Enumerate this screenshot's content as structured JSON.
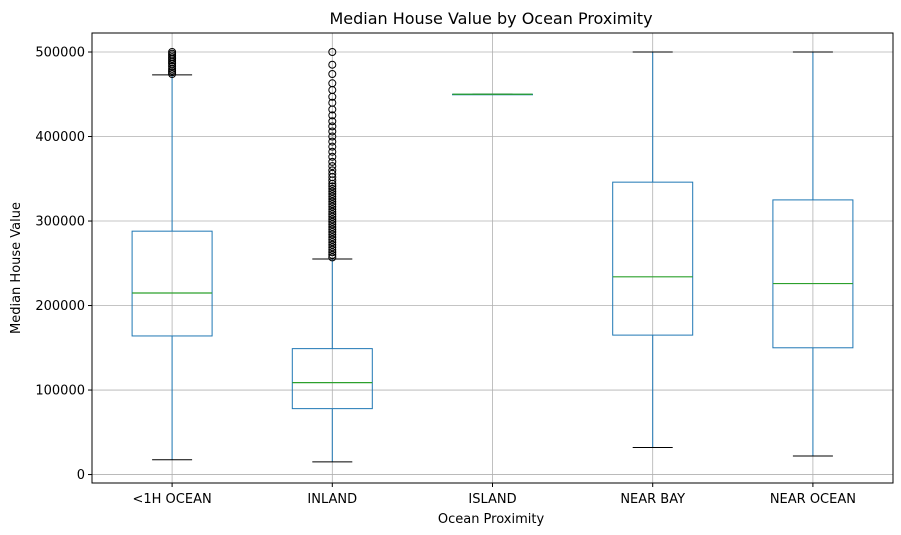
{
  "chart_data": {
    "type": "box",
    "title": "Median House Value by Ocean Proximity",
    "xlabel": "Ocean Proximity",
    "ylabel": "Median House Value",
    "grid": true,
    "ylim": [
      -10000,
      522500
    ],
    "yticks": [
      0,
      100000,
      200000,
      300000,
      400000,
      500000
    ],
    "categories": [
      "<1H OCEAN",
      "INLAND",
      "ISLAND",
      "NEAR BAY",
      "NEAR OCEAN"
    ],
    "boxes": [
      {
        "category": "<1H OCEAN",
        "whisker_low": 17500,
        "q1": 164000,
        "median": 214800,
        "q3": 288000,
        "whisker_high": 473000,
        "outliers": [
          474000,
          476000,
          478000,
          480000,
          483000,
          486000,
          488000,
          490000,
          492000,
          494000,
          496000,
          498000,
          500001
        ]
      },
      {
        "category": "INLAND",
        "whisker_low": 15000,
        "q1": 78000,
        "median": 108800,
        "q3": 149000,
        "whisker_high": 255000,
        "outliers": [
          257000,
          260000,
          263000,
          266000,
          269000,
          272000,
          275000,
          278000,
          281000,
          284000,
          287000,
          290000,
          293000,
          296000,
          299000,
          302000,
          305000,
          308000,
          311000,
          314000,
          317000,
          320000,
          323000,
          326000,
          329000,
          332000,
          335000,
          338000,
          341000,
          344000,
          348000,
          352000,
          356000,
          360000,
          365000,
          370000,
          376000,
          382000,
          388000,
          394000,
          400000,
          406000,
          412000,
          418000,
          425000,
          432000,
          440000,
          447000,
          455000,
          463000,
          474000,
          485000,
          500001
        ]
      },
      {
        "category": "ISLAND",
        "whisker_low": 450000,
        "q1": 450000,
        "median": 450000,
        "q3": 450000,
        "whisker_high": 450000,
        "outliers": []
      },
      {
        "category": "NEAR BAY",
        "whisker_low": 32000,
        "q1": 165000,
        "median": 234000,
        "q3": 346000,
        "whisker_high": 500001,
        "outliers": []
      },
      {
        "category": "NEAR OCEAN",
        "whisker_low": 22000,
        "q1": 150000,
        "median": 226000,
        "q3": 325000,
        "whisker_high": 500001,
        "outliers": []
      }
    ],
    "colors": {
      "box": "#1f77b4",
      "median": "#2ca02c",
      "whisker_cap": "#000000",
      "grid": "#b0b0b0",
      "outlier": "#000000"
    }
  }
}
